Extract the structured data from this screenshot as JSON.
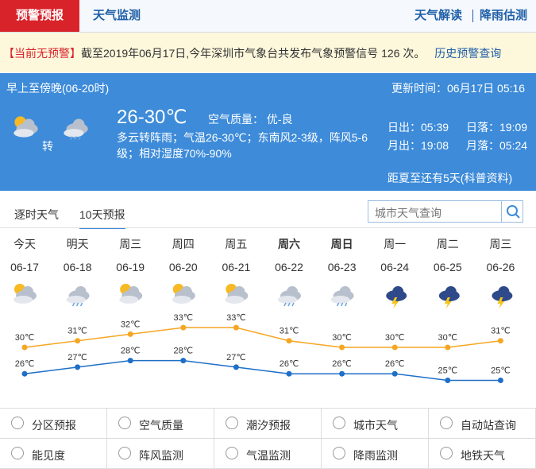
{
  "tabs": {
    "active": "预警预报",
    "other": "天气监测",
    "right": [
      "天气解读",
      "降雨估测"
    ]
  },
  "alert": {
    "status": "【当前无预警】",
    "text": "截至2019年06月17日,今年深圳市气象台共发布气象预警信号 126 次。",
    "link": "历史预警查询"
  },
  "today": {
    "period": "早上至傍晚(06-20时)",
    "updated": "更新时间：06月17日 05:16",
    "change": "转",
    "temp": "26-30℃",
    "air": "空气质量： 优-良",
    "desc": "多云转阵雨；气温26-30℃；东南风2-3级，阵风5-6级；相对湿度70%-90%",
    "sunrise": "日出：05:39",
    "sunset": "日落：19:09",
    "moonrise": "月出：19:08",
    "moonset": "月落：05:24",
    "solar_term": "距夏至还有5天(科普资料)"
  },
  "forecast_tabs": [
    "逐时天气",
    "10天预报"
  ],
  "search_placeholder": "城市天气查询",
  "forecast": {
    "days": [
      "今天",
      "明天",
      "周三",
      "周四",
      "周五",
      "周六",
      "周日",
      "周一",
      "周二",
      "周三"
    ],
    "dates": [
      "06-17",
      "06-18",
      "06-19",
      "06-20",
      "06-21",
      "06-22",
      "06-23",
      "06-24",
      "06-25",
      "06-26"
    ],
    "high": {
      "values": [
        30,
        31,
        32,
        33,
        33,
        31,
        30,
        30,
        30,
        31
      ],
      "value_labels": [
        "30℃",
        "31℃",
        "32℃",
        "33℃",
        "33℃",
        "31℃",
        "30℃",
        "30℃",
        "30℃",
        "31℃"
      ]
    },
    "low": {
      "values": [
        26,
        27,
        28,
        28,
        27,
        26,
        26,
        26,
        25,
        25
      ],
      "value_labels": [
        "26℃",
        "27℃",
        "28℃",
        "28℃",
        "27℃",
        "26℃",
        "26℃",
        "26℃",
        "25℃",
        "25℃"
      ]
    }
  },
  "services": [
    "分区预报",
    "空气质量",
    "潮汐预报",
    "城市天气",
    "自动站查询",
    "能见度",
    "阵风监测",
    "气温监测",
    "降雨监测",
    "地铁天气"
  ]
}
